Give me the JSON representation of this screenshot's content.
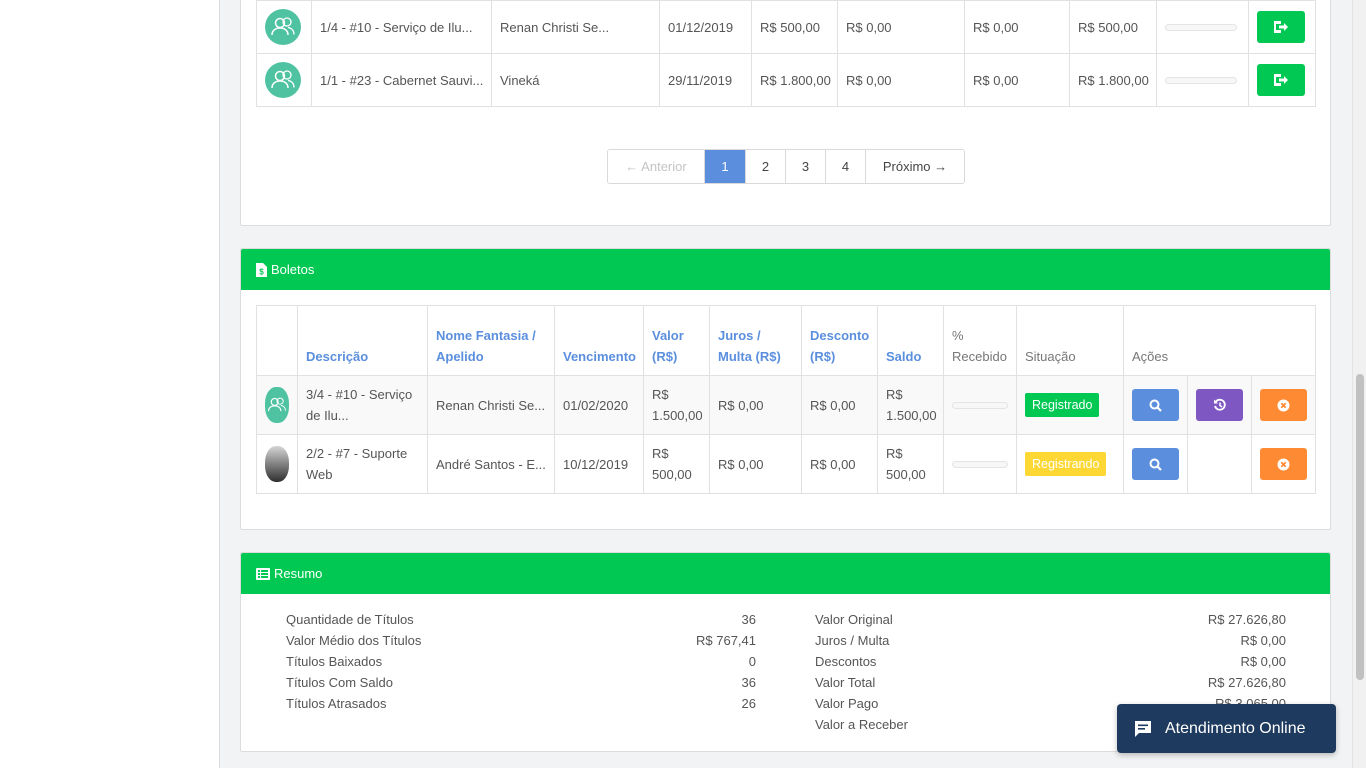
{
  "colors": {
    "accent": "#00c853",
    "link": "#5b8fde",
    "chat": "#1e3a5f"
  },
  "titulos_table": {
    "rows": [
      {
        "descricao": "1/4 - #10 - Serviço de Ilu...",
        "nome": "Renan Christi Se...",
        "vencimento": "01/12/2019",
        "valor": "R$ 500,00",
        "juros": "R$ 0,00",
        "desconto": "R$ 0,00",
        "saldo": "R$ 500,00",
        "action_icon": "exit-icon"
      },
      {
        "descricao": "1/1 - #23 - Cabernet Sauvi...",
        "nome": "Vineká",
        "vencimento": "29/11/2019",
        "valor": "R$ 1.800,00",
        "juros": "R$ 0,00",
        "desconto": "R$ 0,00",
        "saldo": "R$ 1.800,00",
        "action_icon": "exit-icon"
      }
    ]
  },
  "pagination": {
    "prev": "← Anterior",
    "pages": [
      "1",
      "2",
      "3",
      "4"
    ],
    "active": "1",
    "next": "Próximo →"
  },
  "boletos": {
    "title": "Boletos",
    "icon": "file-invoice-icon",
    "headers": {
      "descricao": "Descrição",
      "nome": "Nome Fantasia / Apelido",
      "vencimento": "Vencimento",
      "valor": "Valor (R$)",
      "juros": "Juros / Multa (R$)",
      "desconto": "Desconto (R$)",
      "saldo": "Saldo",
      "recebido": "% Recebido",
      "situacao": "Situação",
      "acoes": "Ações"
    },
    "rows": [
      {
        "descricao": "3/4 - #10 - Serviço de Ilu...",
        "nome": "Renan Christi Se...",
        "vencimento": "01/02/2020",
        "valor": "R$ 1.500,00",
        "juros": "R$ 0,00",
        "desconto": "R$ 0,00",
        "saldo": "R$ 1.500,00",
        "situacao": "Registrado",
        "situacao_color": "#00c853"
      },
      {
        "descricao": "2/2 - #7 - Suporte Web",
        "nome": "André Santos - E...",
        "vencimento": "10/12/2019",
        "valor": "R$ 500,00",
        "juros": "R$ 0,00",
        "desconto": "R$ 0,00",
        "saldo": "R$ 500,00",
        "situacao": "Registrando",
        "situacao_color": "#fdd835"
      }
    ]
  },
  "resumo": {
    "title": "Resumo",
    "icon": "list-icon",
    "left": [
      {
        "label": "Quantidade de Títulos",
        "value": "36"
      },
      {
        "label": "Valor Médio dos Títulos",
        "value": "R$ 767,41"
      },
      {
        "label": "Títulos Baixados",
        "value": "0"
      },
      {
        "label": "Títulos Com Saldo",
        "value": "36"
      },
      {
        "label": "Títulos Atrasados",
        "value": "26"
      }
    ],
    "right": [
      {
        "label": "Valor Original",
        "value": "R$ 27.626,80"
      },
      {
        "label": "Juros / Multa",
        "value": "R$ 0,00"
      },
      {
        "label": "Descontos",
        "value": "R$ 0,00"
      },
      {
        "label": "Valor Total",
        "value": "R$ 27.626,80"
      },
      {
        "label": "Valor Pago",
        "value": "R$ 3.065,00"
      },
      {
        "label": "Valor a Receber",
        "value": ""
      }
    ]
  },
  "chat": {
    "label": "Atendimento Online",
    "icon": "chat-bubble-icon"
  }
}
